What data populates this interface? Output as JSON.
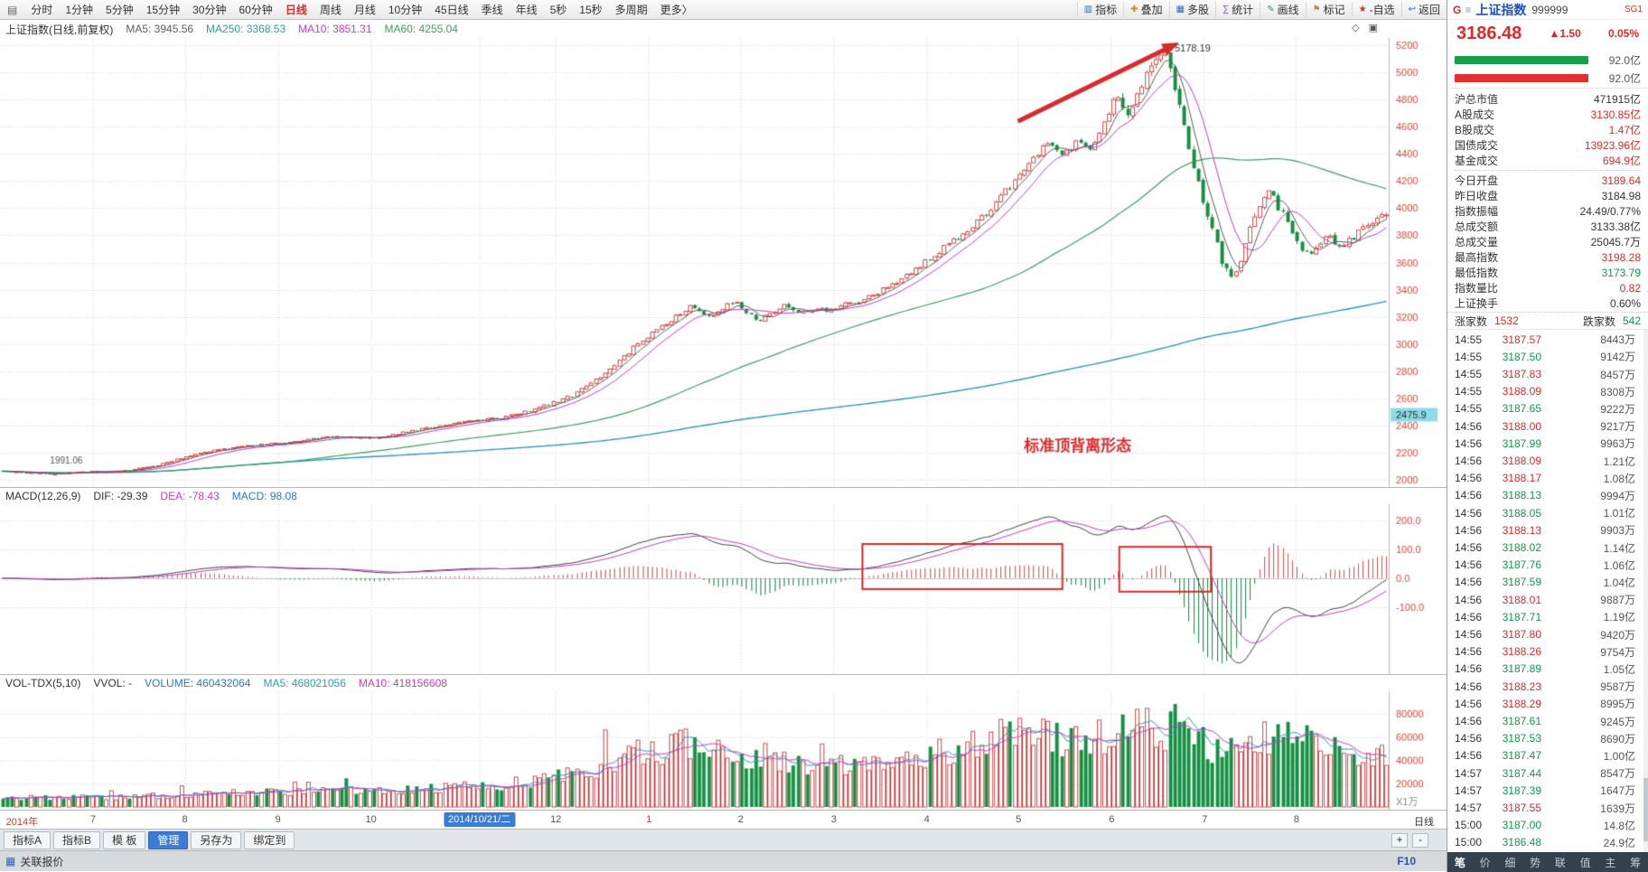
{
  "topbar": {
    "menu_icon": "▤",
    "periods": [
      "分时",
      "1分钟",
      "5分钟",
      "15分钟",
      "30分钟",
      "60分钟",
      "日线",
      "周线",
      "月线",
      "10分钟",
      "45日线",
      "季线",
      "年线",
      "5秒",
      "15秒",
      "多周期",
      "更多〉"
    ],
    "active_period": "日线",
    "tools": [
      {
        "label": "指标",
        "icon": "▥",
        "color": "#2b6bc0"
      },
      {
        "label": "叠加",
        "icon": "✚",
        "color": "#d9822b"
      },
      {
        "label": "多股",
        "icon": "▦",
        "color": "#2b6bc0"
      },
      {
        "label": "统计",
        "icon": "∑",
        "color": "#7a52c0"
      },
      {
        "label": "画线",
        "icon": "✎",
        "color": "#2b9e4a"
      },
      {
        "label": "标记",
        "icon": "⚑",
        "color": "#d9822b"
      },
      {
        "label": "-自选",
        "icon": "★",
        "color": "#d92b2b"
      },
      {
        "label": "返回",
        "icon": "↩",
        "color": "#2b6bc0"
      }
    ]
  },
  "main_header": {
    "title": "上证指数(日线,前复权)",
    "ma5": "MA5: 3945.56",
    "ma250": "MA250: 3368.53",
    "ma10": "MA10: 3851.31",
    "ma60": "MA60: 4255.04",
    "diamond_icon": "◇",
    "page_icon": "▣"
  },
  "macd_header": {
    "name": "MACD(12,26,9)",
    "dif": "DIF: -29.39",
    "dea": "DEA: -78.43",
    "macd": "MACD: 98.08"
  },
  "vol_header": {
    "name": "VOL-TDX(5,10)",
    "vvol": "VVOL: -",
    "volume": "VOLUME: 460432064",
    "ma5": "MA5: 468021056",
    "ma10": "MA10: 418156608"
  },
  "x_axis": {
    "labels": [
      "2014年",
      "7",
      "8",
      "9",
      "10",
      "2014/10/21/二",
      "12",
      "1",
      "2",
      "3",
      "4",
      "5",
      "6",
      "7",
      "8"
    ],
    "highlight_index": 5,
    "red_indices": [
      0,
      7
    ],
    "period_label": "日线",
    "zoom_in": "+",
    "zoom_out": "-"
  },
  "bottom_tabs": {
    "tabs": [
      "指标A",
      "指标B",
      "模 板",
      "管理",
      "另存为",
      "绑定到"
    ],
    "active": "管理"
  },
  "status_bar": {
    "grid_icon": "▦",
    "left": "关联报价",
    "right": "F10"
  },
  "quote_panel": {
    "market_flag": "G",
    "menu_icon": "≡",
    "name": "上证指数",
    "code": "999999",
    "tag": "SG1",
    "price": "3186.48",
    "change": "▲1.50",
    "change_pct": "0.05%",
    "buy_bar_label": "92.0亿",
    "sell_bar_label": "92.0亿",
    "stats": [
      {
        "label": "沪总市值",
        "value": "471915亿",
        "color": "dark"
      },
      {
        "label": "A股成交",
        "value": "3130.85亿",
        "color": "red"
      },
      {
        "label": "B股成交",
        "value": "1.47亿",
        "color": "red"
      },
      {
        "label": "国债成交",
        "value": "13923.96亿",
        "color": "red"
      },
      {
        "label": "基金成交",
        "value": "694.9亿",
        "color": "red",
        "sep": true
      },
      {
        "label": "今日开盘",
        "value": "3189.64",
        "color": "red"
      },
      {
        "label": "昨日收盘",
        "value": "3184.98",
        "color": "dark"
      },
      {
        "label": "指数振幅",
        "value": "24.49/0.77%",
        "color": "dark"
      },
      {
        "label": "总成交额",
        "value": "3133.38亿",
        "color": "dark"
      },
      {
        "label": "总成交量",
        "value": "25045.7万",
        "color": "dark"
      },
      {
        "label": "最高指数",
        "value": "3198.28",
        "color": "red"
      },
      {
        "label": "最低指数",
        "value": "3173.79",
        "color": "green"
      },
      {
        "label": "指数量比",
        "value": "0.82",
        "color": "red"
      },
      {
        "label": "上证换手",
        "value": "0.60%",
        "color": "dark"
      }
    ],
    "adv_decl": {
      "adv_label": "涨家数",
      "adv": "1532",
      "decl_label": "跌家数",
      "decl": "542"
    },
    "ticks": [
      [
        "14:55",
        "3187.57",
        "8443万"
      ],
      [
        "14:55",
        "3187.50",
        "9142万"
      ],
      [
        "14:55",
        "3187.83",
        "8457万"
      ],
      [
        "14:55",
        "3188.09",
        "8308万"
      ],
      [
        "14:55",
        "3187.65",
        "9222万"
      ],
      [
        "14:56",
        "3188.00",
        "9217万"
      ],
      [
        "14:56",
        "3187.99",
        "9963万"
      ],
      [
        "14:56",
        "3188.09",
        "1.21亿"
      ],
      [
        "14:56",
        "3188.17",
        "1.08亿"
      ],
      [
        "14:56",
        "3188.13",
        "9994万"
      ],
      [
        "14:56",
        "3188.05",
        "1.01亿"
      ],
      [
        "14:56",
        "3188.13",
        "9903万"
      ],
      [
        "14:56",
        "3188.02",
        "1.14亿"
      ],
      [
        "14:56",
        "3187.76",
        "1.06亿"
      ],
      [
        "14:56",
        "3187.59",
        "1.04亿"
      ],
      [
        "14:56",
        "3188.01",
        "9887万"
      ],
      [
        "14:56",
        "3187.71",
        "1.19亿"
      ],
      [
        "14:56",
        "3187.80",
        "9420万"
      ],
      [
        "14:56",
        "3188.26",
        "9754万"
      ],
      [
        "14:56",
        "3187.89",
        "1.05亿"
      ],
      [
        "14:56",
        "3188.23",
        "9587万"
      ],
      [
        "14:56",
        "3188.29",
        "8995万"
      ],
      [
        "14:56",
        "3187.61",
        "9245万"
      ],
      [
        "14:56",
        "3187.53",
        "8690万"
      ],
      [
        "14:56",
        "3187.47",
        "1.00亿"
      ],
      [
        "14:57",
        "3187.44",
        "8547万"
      ],
      [
        "14:57",
        "3187.39",
        "1647万"
      ],
      [
        "14:57",
        "3187.55",
        "1639万"
      ],
      [
        "15:00",
        "3187.00",
        "14.8亿"
      ],
      [
        "15:00",
        "3186.48",
        "24.9亿"
      ]
    ],
    "bottom_tabs": [
      "笔",
      "价",
      "细",
      "势",
      "联",
      "值",
      "主",
      "筹"
    ],
    "bottom_active": "笔"
  },
  "chart_data": {
    "type": "candlestick+macd+volume",
    "n_bars": 295,
    "seed": 11,
    "price_range": [
      2000,
      5200
    ],
    "price_tick_step": 200,
    "macd_ticks": [
      -100,
      0,
      100,
      200
    ],
    "vol_ticks": [
      20000,
      40000,
      60000,
      80000
    ],
    "vol_axis_max": 95000,
    "vol_unit_label": "X1万",
    "peak_value": 5178.19,
    "month_fractions": [
      0.003,
      0.067,
      0.133,
      0.2,
      0.267,
      0.345,
      0.4,
      0.467,
      0.533,
      0.6,
      0.667,
      0.733,
      0.8,
      0.867,
      0.933
    ],
    "price_path": [
      [
        0.0,
        2065
      ],
      [
        0.03,
        2045
      ],
      [
        0.06,
        2055
      ],
      [
        0.09,
        2065
      ],
      [
        0.115,
        2110
      ],
      [
        0.145,
        2200
      ],
      [
        0.175,
        2245
      ],
      [
        0.205,
        2270
      ],
      [
        0.24,
        2320
      ],
      [
        0.27,
        2305
      ],
      [
        0.3,
        2365
      ],
      [
        0.33,
        2420
      ],
      [
        0.36,
        2450
      ],
      [
        0.39,
        2530
      ],
      [
        0.415,
        2620
      ],
      [
        0.44,
        2810
      ],
      [
        0.46,
        2990
      ],
      [
        0.48,
        3140
      ],
      [
        0.5,
        3290
      ],
      [
        0.515,
        3190
      ],
      [
        0.53,
        3330
      ],
      [
        0.548,
        3160
      ],
      [
        0.565,
        3280
      ],
      [
        0.582,
        3230
      ],
      [
        0.6,
        3255
      ],
      [
        0.62,
        3310
      ],
      [
        0.64,
        3405
      ],
      [
        0.66,
        3545
      ],
      [
        0.68,
        3690
      ],
      [
        0.7,
        3830
      ],
      [
        0.715,
        3990
      ],
      [
        0.73,
        4160
      ],
      [
        0.745,
        4360
      ],
      [
        0.758,
        4470
      ],
      [
        0.768,
        4370
      ],
      [
        0.778,
        4490
      ],
      [
        0.788,
        4430
      ],
      [
        0.798,
        4610
      ],
      [
        0.808,
        4840
      ],
      [
        0.8155,
        4660
      ],
      [
        0.824,
        4910
      ],
      [
        0.832,
        5060
      ],
      [
        0.84,
        5160
      ],
      [
        0.8475,
        4990
      ],
      [
        0.856,
        4600
      ],
      [
        0.866,
        4180
      ],
      [
        0.876,
        3820
      ],
      [
        0.886,
        3520
      ],
      [
        0.893,
        3460
      ],
      [
        0.9,
        3720
      ],
      [
        0.908,
        3980
      ],
      [
        0.917,
        4130
      ],
      [
        0.927,
        3960
      ],
      [
        0.937,
        3740
      ],
      [
        0.947,
        3650
      ],
      [
        0.957,
        3800
      ],
      [
        0.967,
        3720
      ],
      [
        0.977,
        3790
      ],
      [
        0.987,
        3860
      ],
      [
        1.0,
        3950
      ]
    ],
    "vol_path": [
      [
        0.0,
        8500
      ],
      [
        0.08,
        8000
      ],
      [
        0.15,
        11000
      ],
      [
        0.22,
        14000
      ],
      [
        0.28,
        13000
      ],
      [
        0.33,
        17000
      ],
      [
        0.38,
        21000
      ],
      [
        0.42,
        30000
      ],
      [
        0.46,
        45000
      ],
      [
        0.5,
        56000
      ],
      [
        0.53,
        47000
      ],
      [
        0.56,
        37000
      ],
      [
        0.6,
        34000
      ],
      [
        0.64,
        40000
      ],
      [
        0.68,
        48000
      ],
      [
        0.71,
        56000
      ],
      [
        0.74,
        60000
      ],
      [
        0.77,
        58000
      ],
      [
        0.8,
        63000
      ],
      [
        0.83,
        68000
      ],
      [
        0.86,
        60000
      ],
      [
        0.885,
        46000
      ],
      [
        0.91,
        58000
      ],
      [
        0.93,
        62000
      ],
      [
        0.95,
        52000
      ],
      [
        0.97,
        46000
      ],
      [
        1.0,
        44000
      ]
    ],
    "last_close": 3950,
    "annotations": {
      "peak_label": "5178.19",
      "peak_t": 0.84,
      "low_label": "1991.06",
      "low_t": 0.036,
      "low_price": 2118,
      "divergence_text": "标准顶背离形态",
      "div_t": 0.776,
      "div_price": 2215,
      "arrow": {
        "from_t": 0.733,
        "from_price": 4640,
        "to_t": 0.849,
        "to_price": 5235
      },
      "axis_tag": {
        "label": "2475.9",
        "price": 2475.9
      },
      "macd_rects": [
        {
          "t0": 0.621,
          "t1": 0.765,
          "v0": 119,
          "v1": -38
        },
        {
          "t0": 0.806,
          "t1": 0.872,
          "v0": 109,
          "v1": -47
        }
      ]
    },
    "colors": {
      "up": "#d94f4f",
      "down": "#169044",
      "ma5": "#5e5e5e",
      "ma10": "#c23ec2",
      "ma60": "#3f9e63",
      "ma250": "#2e9ab5",
      "dif": "#444444",
      "dea": "#c23ec2",
      "vol_ma5": "#2aa0b5",
      "vol_ma10": "#c23ec2",
      "grid": "#d4d4d4",
      "frame": "#b8b8b8",
      "axis_text": "#d9493f",
      "annotation": "#d92b2b",
      "axis_tag_bg": "#8fd9ea",
      "axis_tag_text": "#11323a"
    }
  }
}
